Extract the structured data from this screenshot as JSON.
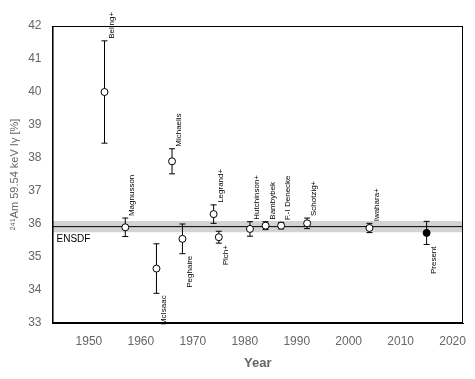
{
  "chart_data": {
    "type": "scatter",
    "xlabel": "Year",
    "ylabel": "²⁴¹Am 59.54 keV Iγ [%]",
    "xlim": [
      1943,
      2022
    ],
    "ylim": [
      33,
      42
    ],
    "xticks": [
      1950,
      1960,
      1970,
      1980,
      1990,
      2000,
      2010,
      2020
    ],
    "yticks": [
      33,
      34,
      35,
      36,
      37,
      38,
      39,
      40,
      41,
      42
    ],
    "grid": false,
    "reference": {
      "label": "ENSDF",
      "value": 35.92,
      "uncertainty": 0.17,
      "color": "gray"
    },
    "series": [
      {
        "marker": "open_circle",
        "color": "black",
        "x": [
          1953,
          1957,
          1963,
          1966,
          1968,
          1974,
          1975,
          1981,
          1984,
          1987,
          1992,
          2004
        ],
        "values": [
          40.0,
          35.9,
          34.65,
          37.9,
          35.55,
          36.3,
          35.6,
          35.85,
          35.95,
          35.95,
          36.02,
          35.88
        ],
        "yerr": [
          1.55,
          0.28,
          0.75,
          0.38,
          0.45,
          0.28,
          0.18,
          0.22,
          0.12,
          0.1,
          0.16,
          0.14
        ],
        "labels": [
          "Beling+",
          "Magnusson",
          "McIsaac",
          "Michaelis",
          "Peghaire",
          "Legrand+",
          "Plch+",
          "Hutchinson+",
          "Bambybek",
          "F.-I Denecke",
          "Schotzig+",
          "Iwahara+"
        ]
      },
      {
        "marker": "filled_circle",
        "color": "black",
        "x": [
          2015
        ],
        "values": [
          35.73
        ],
        "yerr": [
          0.35
        ],
        "labels": [
          "Present"
        ]
      }
    ]
  }
}
